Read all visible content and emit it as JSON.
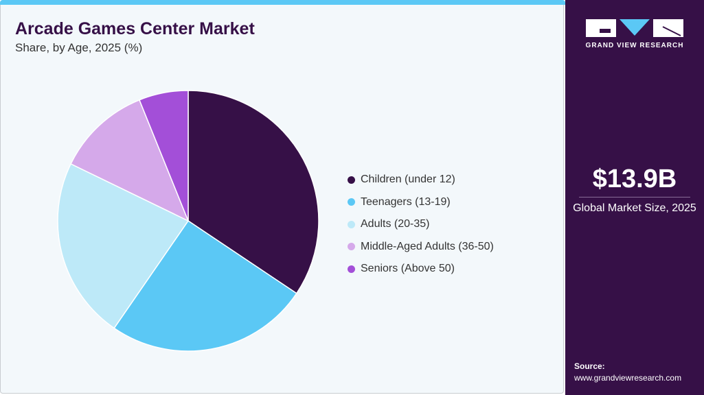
{
  "header": {
    "title": "Arcade Games Center Market",
    "subtitle": "Share, by Age, 2025 (%)"
  },
  "chart_data": {
    "type": "pie",
    "title": "Arcade Games Center Market",
    "subtitle": "Share, by Age, 2025 (%)",
    "categories": [
      "Children (under 12)",
      "Teenagers (13-19)",
      "Adults (20-35)",
      "Middle-Aged Adults (36-50)",
      "Seniors (Above 50)"
    ],
    "values": [
      34.4,
      25.2,
      22.6,
      11.7,
      6.1
    ],
    "colors": [
      "#361047",
      "#5bc8f5",
      "#bde9f8",
      "#d5a9ea",
      "#a34fd8"
    ],
    "legend_position": "right",
    "start_angle": "top, clockwise"
  },
  "sidebar": {
    "logo_text": "GRAND VIEW RESEARCH",
    "market_size": "$13.9B",
    "market_size_label": "Global Market Size, 2025",
    "source_label": "Source:",
    "source_url": "www.grandviewresearch.com"
  }
}
